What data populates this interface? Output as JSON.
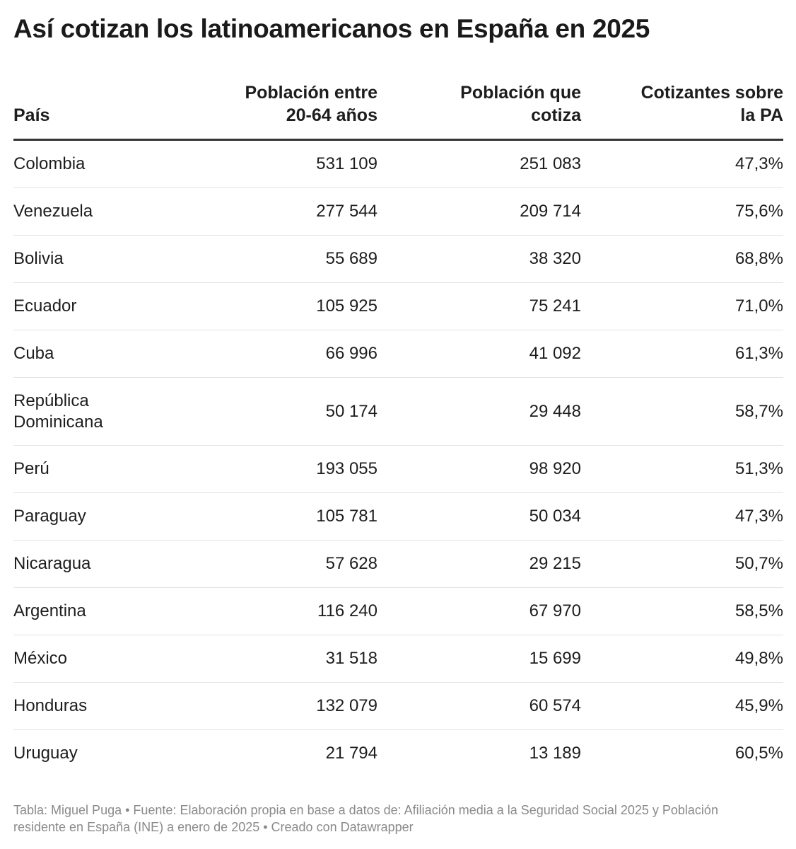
{
  "title": "Así cotizan los latinoamericanos en España en 2025",
  "columns": [
    {
      "line1": "",
      "line2": "País"
    },
    {
      "line1": "Población entre",
      "line2": "20-64 años"
    },
    {
      "line1": "Población que",
      "line2": "cotiza"
    },
    {
      "line1": "Cotizantes sobre",
      "line2": "la PA"
    }
  ],
  "rows": [
    {
      "pais": "Colombia",
      "poblacion": "531 109",
      "cotiza": "251 083",
      "pct": "47,3%"
    },
    {
      "pais": "Venezuela",
      "poblacion": "277 544",
      "cotiza": "209 714",
      "pct": "75,6%"
    },
    {
      "pais": "Bolivia",
      "poblacion": "55 689",
      "cotiza": "38 320",
      "pct": "68,8%"
    },
    {
      "pais": "Ecuador",
      "poblacion": "105 925",
      "cotiza": "75 241",
      "pct": "71,0%"
    },
    {
      "pais": "Cuba",
      "poblacion": "66 996",
      "cotiza": "41 092",
      "pct": "61,3%"
    },
    {
      "pais": "República Dominicana",
      "poblacion": "50 174",
      "cotiza": "29 448",
      "pct": "58,7%"
    },
    {
      "pais": "Perú",
      "poblacion": "193 055",
      "cotiza": "98 920",
      "pct": "51,3%"
    },
    {
      "pais": "Paraguay",
      "poblacion": "105 781",
      "cotiza": "50 034",
      "pct": "47,3%"
    },
    {
      "pais": "Nicaragua",
      "poblacion": "57 628",
      "cotiza": "29 215",
      "pct": "50,7%"
    },
    {
      "pais": "Argentina",
      "poblacion": "116 240",
      "cotiza": "67 970",
      "pct": "58,5%"
    },
    {
      "pais": "México",
      "poblacion": "31 518",
      "cotiza": "15 699",
      "pct": "49,8%"
    },
    {
      "pais": "Honduras",
      "poblacion": "132 079",
      "cotiza": "60 574",
      "pct": "45,9%"
    },
    {
      "pais": "Uruguay",
      "poblacion": "21 794",
      "cotiza": "13 189",
      "pct": "60,5%"
    }
  ],
  "footer": "Tabla: Miguel Puga • Fuente: Elaboración propia en base a datos de: Afiliación media a la Seguridad Social 2025 y Población residente en España (INE) a enero de 2025 • Creado con Datawrapper",
  "chart_data": {
    "type": "table",
    "title": "Así cotizan los latinoamericanos en España en 2025",
    "columns": [
      "País",
      "Población entre 20-64 años",
      "Población que cotiza",
      "Cotizantes sobre la PA"
    ],
    "rows": [
      [
        "Colombia",
        531109,
        251083,
        47.3
      ],
      [
        "Venezuela",
        277544,
        209714,
        75.6
      ],
      [
        "Bolivia",
        55689,
        38320,
        68.8
      ],
      [
        "Ecuador",
        105925,
        75241,
        71.0
      ],
      [
        "Cuba",
        66996,
        41092,
        61.3
      ],
      [
        "República Dominicana",
        50174,
        29448,
        58.7
      ],
      [
        "Perú",
        193055,
        98920,
        51.3
      ],
      [
        "Paraguay",
        105781,
        50034,
        47.3
      ],
      [
        "Nicaragua",
        57628,
        29215,
        50.7
      ],
      [
        "Argentina",
        116240,
        67970,
        58.5
      ],
      [
        "México",
        31518,
        15699,
        49.8
      ],
      [
        "Honduras",
        132079,
        60574,
        45.9
      ],
      [
        "Uruguay",
        21794,
        13189,
        60.5
      ]
    ]
  }
}
